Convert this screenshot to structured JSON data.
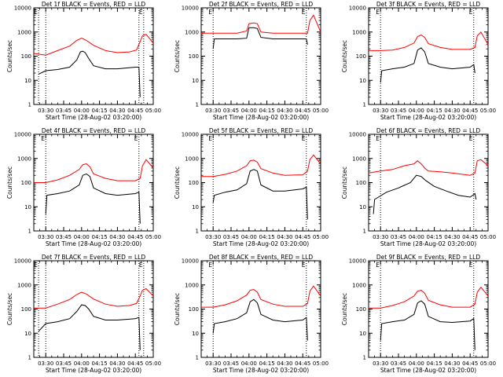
{
  "xlabel": "Start Time (28-Aug-02 03:20:00)",
  "ylabel": "Counts/sec",
  "x_tick_labels": [
    "03:30",
    "03:45",
    "04:00",
    "04:15",
    "04:30",
    "04:45",
    "05:00"
  ],
  "y_tick_labels": [
    "1",
    "10",
    "100",
    "1000",
    "10000"
  ],
  "markers": [
    "E",
    "E"
  ],
  "colors": {
    "events": "#000000",
    "lld": "#ff0000",
    "axis": "#000000"
  },
  "chart_data": [
    {
      "type": "line",
      "title": "Det 1f BLACK = Events, RED = LLD",
      "x_range_min": [
        0,
        100
      ],
      "y_range": [
        1,
        10000
      ],
      "y_scale": "log",
      "dotted_lines_min": [
        4,
        10,
        88,
        92
      ],
      "series": [
        {
          "name": "Events",
          "x": [
            4,
            10,
            20,
            30,
            36,
            39,
            41,
            43,
            46,
            50,
            60,
            70,
            85,
            88,
            89
          ],
          "y": [
            18,
            25,
            28,
            35,
            70,
            150,
            160,
            140,
            80,
            40,
            30,
            30,
            35,
            35,
            2
          ]
        },
        {
          "name": "LLD",
          "x": [
            0,
            10,
            20,
            30,
            36,
            40,
            44,
            50,
            60,
            70,
            80,
            86,
            89,
            91,
            94,
            100
          ],
          "y": [
            130,
            110,
            170,
            260,
            450,
            560,
            450,
            280,
            170,
            140,
            150,
            180,
            400,
            700,
            800,
            350
          ]
        }
      ]
    },
    {
      "type": "line",
      "title": "Det 2f BLACK = Events, RED = LLD",
      "x_range_min": [
        0,
        100
      ],
      "y_range": [
        1,
        10000
      ],
      "y_scale": "log",
      "dotted_lines_min": [
        10,
        88
      ],
      "series": [
        {
          "name": "Events",
          "x": [
            10,
            11,
            20,
            30,
            38,
            40,
            44,
            47,
            50,
            60,
            70,
            85,
            88,
            89
          ],
          "y": [
            200,
            520,
            520,
            520,
            550,
            1500,
            1500,
            1400,
            600,
            520,
            520,
            520,
            520,
            300
          ]
        },
        {
          "name": "LLD",
          "x": [
            0,
            10,
            20,
            30,
            38,
            40,
            44,
            47,
            50,
            60,
            70,
            85,
            89,
            91,
            94,
            100
          ],
          "y": [
            900,
            900,
            900,
            900,
            1100,
            2200,
            2400,
            2200,
            1000,
            900,
            900,
            900,
            900,
            3000,
            5000,
            1000
          ]
        }
      ]
    },
    {
      "type": "line",
      "title": "Det 3f BLACK = Events, RED = LLD",
      "x_range_min": [
        0,
        100
      ],
      "y_range": [
        1,
        10000
      ],
      "y_scale": "log",
      "dotted_lines_min": [
        10,
        88
      ],
      "series": [
        {
          "name": "Events",
          "x": [
            10,
            11,
            20,
            30,
            38,
            41,
            44,
            47,
            50,
            60,
            70,
            85,
            88,
            89
          ],
          "y": [
            8,
            25,
            30,
            35,
            50,
            180,
            220,
            150,
            50,
            35,
            30,
            35,
            45,
            20
          ]
        },
        {
          "name": "LLD",
          "x": [
            0,
            10,
            20,
            30,
            38,
            41,
            44,
            47,
            50,
            60,
            70,
            85,
            89,
            91,
            94,
            100
          ],
          "y": [
            170,
            170,
            180,
            230,
            350,
            650,
            750,
            600,
            330,
            230,
            190,
            190,
            230,
            700,
            1000,
            300
          ]
        }
      ]
    },
    {
      "type": "line",
      "title": "Det 4f BLACK = Events, RED = LLD",
      "x_range_min": [
        0,
        100
      ],
      "y_range": [
        1,
        10000
      ],
      "y_scale": "log",
      "dotted_lines_min": [
        10,
        88
      ],
      "series": [
        {
          "name": "Events",
          "x": [
            10,
            11,
            20,
            30,
            38,
            41,
            44,
            47,
            50,
            60,
            70,
            85,
            88,
            89
          ],
          "y": [
            5,
            30,
            35,
            45,
            80,
            200,
            230,
            180,
            60,
            35,
            30,
            35,
            40,
            2
          ]
        },
        {
          "name": "LLD",
          "x": [
            0,
            10,
            20,
            30,
            38,
            41,
            44,
            47,
            50,
            60,
            70,
            85,
            89,
            91,
            94,
            100
          ],
          "y": [
            100,
            100,
            130,
            200,
            350,
            550,
            600,
            450,
            230,
            150,
            120,
            120,
            150,
            500,
            900,
            400
          ]
        }
      ]
    },
    {
      "type": "line",
      "title": "Det 5f BLACK = Events, RED = LLD",
      "x_range_min": [
        0,
        100
      ],
      "y_range": [
        1,
        10000
      ],
      "y_scale": "log",
      "dotted_lines_min": [
        10,
        88
      ],
      "series": [
        {
          "name": "Events",
          "x": [
            10,
            11,
            20,
            30,
            38,
            41,
            44,
            47,
            50,
            60,
            70,
            85,
            88,
            89
          ],
          "y": [
            15,
            30,
            40,
            50,
            90,
            300,
            350,
            300,
            80,
            45,
            45,
            55,
            65,
            3
          ]
        },
        {
          "name": "LLD",
          "x": [
            0,
            10,
            20,
            30,
            38,
            41,
            44,
            47,
            50,
            60,
            70,
            85,
            89,
            91,
            94,
            100
          ],
          "y": [
            180,
            180,
            220,
            300,
            500,
            800,
            850,
            700,
            380,
            250,
            200,
            210,
            300,
            900,
            1400,
            600
          ]
        }
      ]
    },
    {
      "type": "line",
      "title": "Det 6f BLACK = Events, RED = LLD",
      "x_range_min": [
        0,
        100
      ],
      "y_range": [
        1,
        10000
      ],
      "y_scale": "log",
      "dotted_lines_min": [
        10,
        88
      ],
      "series": [
        {
          "name": "Events",
          "x": [
            4,
            5,
            15,
            25,
            35,
            40,
            44,
            48,
            55,
            65,
            75,
            85,
            89,
            90
          ],
          "y": [
            5,
            20,
            40,
            60,
            100,
            200,
            180,
            120,
            70,
            45,
            30,
            25,
            35,
            20
          ]
        },
        {
          "name": "LLD",
          "x": [
            0,
            10,
            20,
            30,
            38,
            41,
            44,
            47,
            50,
            60,
            70,
            85,
            89,
            91,
            94,
            100
          ],
          "y": [
            250,
            300,
            350,
            500,
            600,
            800,
            600,
            400,
            300,
            280,
            250,
            200,
            250,
            800,
            900,
            500
          ]
        }
      ]
    },
    {
      "type": "line",
      "title": "Det 7f BLACK = Events, RED = LLD",
      "x_range_min": [
        0,
        100
      ],
      "y_range": [
        1,
        10000
      ],
      "y_scale": "log",
      "dotted_lines_min": [
        4,
        10,
        88,
        92
      ],
      "series": [
        {
          "name": "Events",
          "x": [
            4,
            10,
            20,
            30,
            36,
            40,
            43,
            46,
            50,
            60,
            70,
            85,
            88,
            89
          ],
          "y": [
            12,
            25,
            30,
            40,
            80,
            150,
            140,
            100,
            50,
            35,
            35,
            40,
            45,
            2
          ]
        },
        {
          "name": "LLD",
          "x": [
            0,
            10,
            20,
            30,
            36,
            40,
            44,
            50,
            60,
            70,
            80,
            86,
            89,
            91,
            94,
            100
          ],
          "y": [
            110,
            110,
            160,
            250,
            400,
            500,
            420,
            260,
            160,
            130,
            140,
            170,
            350,
            600,
            700,
            350
          ]
        }
      ]
    },
    {
      "type": "line",
      "title": "Det 8f BLACK = Events, RED = LLD",
      "x_range_min": [
        0,
        100
      ],
      "y_range": [
        1,
        10000
      ],
      "y_scale": "log",
      "dotted_lines_min": [
        10,
        88
      ],
      "series": [
        {
          "name": "Events",
          "x": [
            10,
            11,
            20,
            30,
            38,
            41,
            44,
            47,
            50,
            60,
            70,
            85,
            88,
            89
          ],
          "y": [
            10,
            25,
            30,
            40,
            70,
            200,
            250,
            180,
            60,
            35,
            30,
            35,
            45,
            5
          ]
        },
        {
          "name": "LLD",
          "x": [
            0,
            10,
            20,
            30,
            38,
            41,
            44,
            47,
            50,
            60,
            70,
            85,
            89,
            91,
            94,
            100
          ],
          "y": [
            120,
            120,
            150,
            220,
            380,
            600,
            650,
            500,
            250,
            160,
            130,
            130,
            170,
            550,
            900,
            350
          ]
        }
      ]
    },
    {
      "type": "line",
      "title": "Det 9f BLACK = Events, RED = LLD",
      "x_range_min": [
        0,
        100
      ],
      "y_range": [
        1,
        10000
      ],
      "y_scale": "log",
      "dotted_lines_min": [
        10,
        88
      ],
      "series": [
        {
          "name": "Events",
          "x": [
            10,
            11,
            20,
            30,
            38,
            41,
            44,
            47,
            50,
            60,
            70,
            85,
            88,
            89
          ],
          "y": [
            5,
            25,
            30,
            35,
            60,
            180,
            220,
            160,
            50,
            30,
            28,
            32,
            40,
            2
          ]
        },
        {
          "name": "LLD",
          "x": [
            0,
            10,
            20,
            30,
            38,
            41,
            44,
            47,
            50,
            60,
            70,
            85,
            89,
            91,
            94,
            100
          ],
          "y": [
            110,
            110,
            140,
            200,
            350,
            550,
            600,
            450,
            230,
            150,
            120,
            120,
            160,
            500,
            800,
            350
          ]
        }
      ]
    }
  ]
}
